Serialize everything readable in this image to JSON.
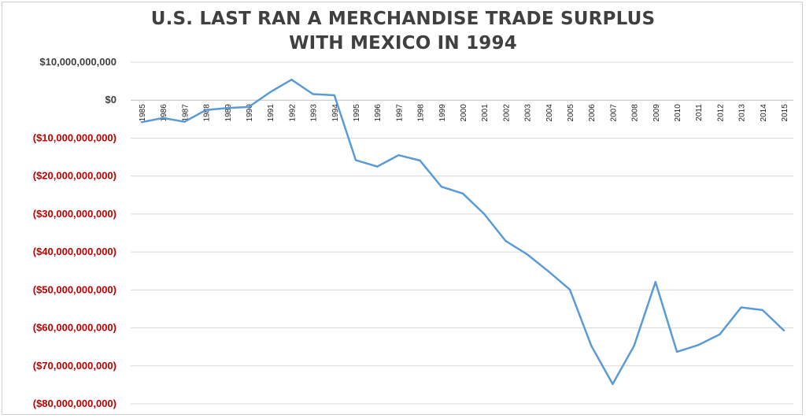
{
  "chart_data": {
    "type": "line",
    "title_lines": [
      "U.S. LAST RAN A MERCHANDISE TRADE SURPLUS",
      "WITH MEXICO IN 1994"
    ],
    "xlabel": "",
    "ylabel": "",
    "ylim": [
      -80000000000,
      10000000000
    ],
    "y_ticks": [
      10000000000,
      0,
      -10000000000,
      -20000000000,
      -30000000000,
      -40000000000,
      -50000000000,
      -60000000000,
      -70000000000,
      -80000000000
    ],
    "y_tick_labels": [
      "$10,000,000,000",
      "$0",
      "($10,000,000,000)",
      "($20,000,000,000)",
      "($30,000,000,000)",
      "($40,000,000,000)",
      "($50,000,000,000)",
      "($60,000,000,000)",
      "($70,000,000,000)",
      "($80,000,000,000)"
    ],
    "grid": true,
    "colors": {
      "line": "#5b9bd5",
      "negative_label": "#c00000",
      "positive_label": "#404040",
      "grid": "#d9d9d9"
    },
    "x": [
      "1985",
      "1986",
      "1987",
      "1988",
      "1989",
      "1990",
      "1991",
      "1992",
      "1993",
      "1994",
      "1995",
      "1996",
      "1997",
      "1998",
      "1999",
      "2000",
      "2001",
      "2002",
      "2003",
      "2004",
      "2005",
      "2006",
      "2007",
      "2008",
      "2009",
      "2010",
      "2011",
      "2012",
      "2013",
      "2014",
      "2015"
    ],
    "values": [
      -5800000000,
      -4700000000,
      -5700000000,
      -2600000000,
      -2100000000,
      -1800000000,
      2100000000,
      5400000000,
      1600000000,
      1300000000,
      -15800000000,
      -17500000000,
      -14500000000,
      -15900000000,
      -22800000000,
      -24600000000,
      -30000000000,
      -37100000000,
      -40600000000,
      -45100000000,
      -49900000000,
      -64700000000,
      -74800000000,
      -64700000000,
      -47900000000,
      -66300000000,
      -64500000000,
      -61700000000,
      -54600000000,
      -55300000000,
      -60700000000
    ]
  }
}
